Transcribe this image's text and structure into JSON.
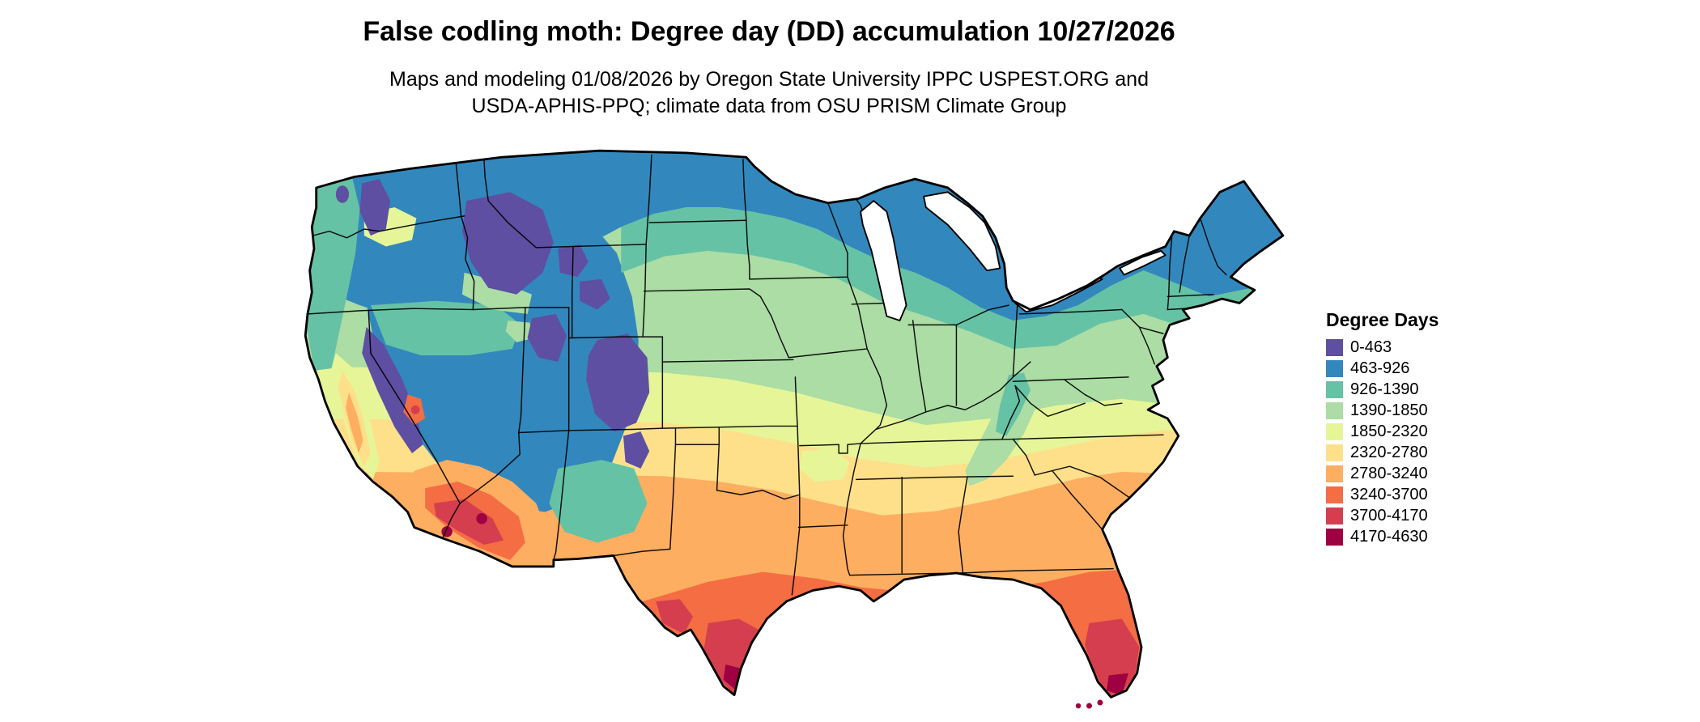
{
  "title": "False codling moth: Degree day (DD) accumulation 10/27/2026",
  "subtitle_line1": "Maps and modeling 01/08/2026 by Oregon State University IPPC USPEST.ORG and",
  "subtitle_line2": "USDA-APHIS-PPQ; climate data from OSU PRISM Climate Group",
  "legend": {
    "title": "Degree Days",
    "items": [
      {
        "label": "0-463",
        "color": "#5e4fa2"
      },
      {
        "label": "463-926",
        "color": "#3288bd"
      },
      {
        "label": "926-1390",
        "color": "#66c2a5"
      },
      {
        "label": "1390-1850",
        "color": "#abdda4"
      },
      {
        "label": "1850-2320",
        "color": "#e6f598"
      },
      {
        "label": "2320-2780",
        "color": "#fee08b"
      },
      {
        "label": "2780-3240",
        "color": "#fdae61"
      },
      {
        "label": "3240-3700",
        "color": "#f46d43"
      },
      {
        "label": "3700-4170",
        "color": "#d53e4f"
      },
      {
        "label": "4170-4630",
        "color": "#9e0142"
      }
    ]
  }
}
